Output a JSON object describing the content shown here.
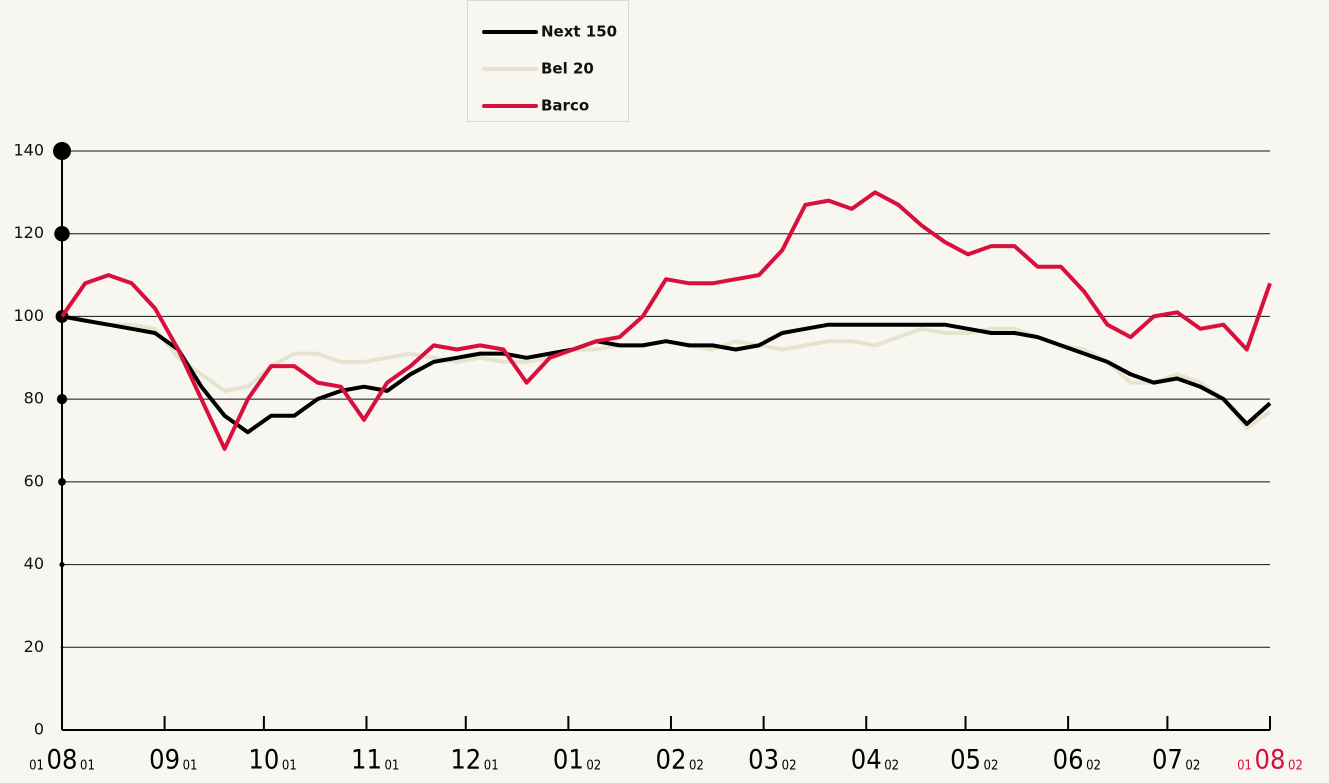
{
  "chart_data": {
    "type": "line",
    "ylim": [
      0,
      140
    ],
    "yticks": [
      0,
      20,
      40,
      60,
      80,
      100,
      120,
      140
    ],
    "grid": true,
    "xlim": [
      {
        "day": "01",
        "month": "08",
        "year": "01"
      },
      {
        "day": "01",
        "month": "08",
        "year": "02"
      }
    ],
    "xticks": [
      {
        "day": "01",
        "month": "08",
        "year": "01"
      },
      {
        "month": "09",
        "year": "01"
      },
      {
        "month": "10",
        "year": "01"
      },
      {
        "month": "11",
        "year": "01"
      },
      {
        "month": "12",
        "year": "01"
      },
      {
        "month": "01",
        "year": "02"
      },
      {
        "month": "02",
        "year": "02"
      },
      {
        "month": "03",
        "year": "02"
      },
      {
        "month": "04",
        "year": "02"
      },
      {
        "month": "05",
        "year": "02"
      },
      {
        "month": "06",
        "year": "02"
      },
      {
        "month": "07",
        "year": "02"
      },
      {
        "day": "01",
        "month": "08",
        "year": "02",
        "color": "#d8103c"
      }
    ],
    "series": [
      {
        "name": "Next 150",
        "color": "#000000",
        "values": [
          100,
          99,
          98,
          97,
          96,
          92,
          83,
          76,
          72,
          76,
          76,
          80,
          82,
          83,
          82,
          86,
          89,
          90,
          91,
          91,
          90,
          91,
          92,
          94,
          93,
          93,
          94,
          93,
          93,
          92,
          93,
          96,
          97,
          98,
          98,
          98,
          98,
          98,
          98,
          97,
          96,
          96,
          95,
          93,
          91,
          89,
          86,
          84,
          85,
          83,
          80,
          74,
          79
        ]
      },
      {
        "name": "Bel 20",
        "color": "#e6e4cf",
        "values": [
          100,
          99,
          98,
          98,
          97,
          90,
          86,
          82,
          83,
          88,
          91,
          91,
          89,
          89,
          90,
          91,
          90,
          89,
          90,
          89,
          89,
          90,
          92,
          92,
          93,
          93,
          94,
          93,
          92,
          94,
          93,
          92,
          93,
          94,
          94,
          93,
          95,
          97,
          96,
          96,
          97,
          97,
          95,
          93,
          92,
          89,
          84,
          84,
          86,
          84,
          80,
          73,
          77
        ]
      },
      {
        "name": "Barco",
        "color": "#d8103c",
        "values": [
          100,
          108,
          110,
          108,
          102,
          92,
          80,
          68,
          80,
          88,
          88,
          84,
          83,
          75,
          84,
          88,
          93,
          92,
          93,
          92,
          84,
          90,
          92,
          94,
          95,
          100,
          109,
          108,
          108,
          109,
          110,
          116,
          127,
          128,
          126,
          130,
          127,
          122,
          118,
          115,
          117,
          117,
          112,
          112,
          106,
          98,
          95,
          100,
          101,
          97,
          98,
          92,
          108
        ]
      }
    ]
  }
}
